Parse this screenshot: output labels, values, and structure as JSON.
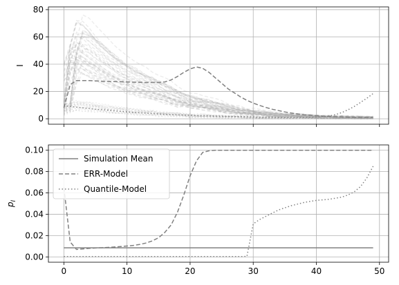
{
  "chart_data": [
    {
      "type": "line",
      "ylabel": "I",
      "xlim": [
        -2.45,
        51.45
      ],
      "ylim": [
        -4,
        82
      ],
      "xticks": [
        0,
        10,
        20,
        30,
        40,
        50
      ],
      "yticks": [
        0,
        20,
        40,
        60,
        80
      ],
      "xtick_labels_visible": false,
      "grid": true,
      "series": [
        {
          "style": "simulation-runs",
          "color": "#a9a9a9",
          "values_upper_band": [
            10,
            45,
            60,
            58,
            54,
            50,
            46,
            42,
            39,
            36,
            33,
            31,
            29,
            27,
            25,
            23,
            21,
            19,
            17,
            15,
            14,
            13,
            12,
            11,
            10,
            9,
            8,
            7,
            6,
            5.5,
            5,
            4.5,
            4,
            3.5,
            3,
            2.8,
            2.6,
            2.4,
            2.2,
            2,
            1.8,
            1.6,
            1.5,
            1.4,
            1.3,
            1.2,
            1.1,
            1,
            1,
            1
          ]
        },
        {
          "style": "dashed",
          "color": "#808080",
          "values": [
            8,
            25,
            28,
            28,
            28,
            27.7,
            27.5,
            27.3,
            27.2,
            27.1,
            27,
            26.8,
            26.7,
            26.6,
            26.6,
            26.6,
            27,
            28.5,
            31,
            34,
            36.5,
            38,
            37,
            34,
            30,
            26,
            22,
            19,
            16,
            13.5,
            11.5,
            9.8,
            8.3,
            7,
            6,
            5,
            4.2,
            3.6,
            3,
            2.6,
            2.2,
            1.9,
            1.7,
            1.5,
            1.3,
            1.2,
            1.1,
            1,
            1,
            1
          ]
        },
        {
          "style": "dotted",
          "color": "#808080",
          "values": [
            9.5,
            9,
            8.5,
            8,
            7.5,
            7,
            6.6,
            6.2,
            5.8,
            5.4,
            5,
            4.7,
            4.4,
            4.1,
            3.8,
            3.5,
            3.3,
            3.1,
            2.9,
            2.7,
            2.5,
            2.3,
            2.1,
            2,
            1.9,
            1.8,
            1.7,
            1.6,
            1.5,
            1.4,
            1.3,
            1.2,
            1.1,
            1.1,
            1,
            1,
            1,
            1,
            1,
            1,
            1.2,
            1.5,
            2,
            3,
            4.5,
            6.5,
            9,
            12,
            15,
            18.5
          ]
        }
      ]
    },
    {
      "type": "line",
      "ylabel": "p_I",
      "xlim": [
        -2.45,
        51.45
      ],
      "ylim": [
        -0.005,
        0.105
      ],
      "xticks": [
        0,
        10,
        20,
        30,
        40,
        50
      ],
      "yticks": [
        0.0,
        0.02,
        0.04,
        0.06,
        0.08,
        0.1
      ],
      "ytick_labels": [
        "0.00",
        "0.02",
        "0.04",
        "0.06",
        "0.08",
        "0.10"
      ],
      "xtick_labels": [
        "0",
        "10",
        "20",
        "30",
        "40",
        "50"
      ],
      "grid": true,
      "legend": "top-left",
      "series": [
        {
          "name": "Simulation Mean",
          "style": "solid",
          "color": "#808080",
          "values": [
            0.0085,
            0.0085,
            0.0085,
            0.0085,
            0.0085,
            0.0085,
            0.0085,
            0.0085,
            0.0085,
            0.0085,
            0.0085,
            0.0085,
            0.0085,
            0.0085,
            0.0085,
            0.0085,
            0.0085,
            0.0085,
            0.0085,
            0.0085,
            0.0085,
            0.0085,
            0.0085,
            0.0085,
            0.0085,
            0.0085,
            0.0085,
            0.0085,
            0.0085,
            0.0085,
            0.0085,
            0.0085,
            0.0085,
            0.0085,
            0.0085,
            0.0085,
            0.0085,
            0.0085,
            0.0085,
            0.0085,
            0.0085,
            0.0085,
            0.0085,
            0.0085,
            0.0085,
            0.0085,
            0.0085,
            0.0085,
            0.0085,
            0.0085
          ]
        },
        {
          "name": "ERR-Model",
          "style": "dashed",
          "color": "#808080",
          "values": [
            0.065,
            0.014,
            0.007,
            0.0075,
            0.008,
            0.0083,
            0.0086,
            0.0089,
            0.0093,
            0.0097,
            0.0102,
            0.0108,
            0.0116,
            0.013,
            0.015,
            0.018,
            0.023,
            0.03,
            0.042,
            0.058,
            0.076,
            0.09,
            0.098,
            0.0995,
            0.1,
            0.1,
            0.1,
            0.1,
            0.1,
            0.1,
            0.1,
            0.1,
            0.1,
            0.1,
            0.1,
            0.1,
            0.1,
            0.1,
            0.1,
            0.1,
            0.1,
            0.1,
            0.1,
            0.1,
            0.1,
            0.1,
            0.1,
            0.1,
            0.1,
            0.1
          ]
        },
        {
          "name": "Quantile-Model",
          "style": "dotted",
          "color": "#808080",
          "values": [
            0.0003,
            0.0003,
            0.0003,
            0.0003,
            0.0003,
            0.0003,
            0.0003,
            0.0003,
            0.0003,
            0.0003,
            0.0003,
            0.0003,
            0.0003,
            0.0003,
            0.0003,
            0.0003,
            0.0003,
            0.0003,
            0.0003,
            0.0003,
            0.0003,
            0.0003,
            0.0003,
            0.0003,
            0.0003,
            0.0003,
            0.0003,
            0.0003,
            0.0003,
            0.0005,
            0.031,
            0.035,
            0.038,
            0.041,
            0.044,
            0.046,
            0.048,
            0.0495,
            0.051,
            0.052,
            0.053,
            0.0535,
            0.054,
            0.055,
            0.056,
            0.058,
            0.061,
            0.066,
            0.074,
            0.085
          ]
        }
      ]
    }
  ]
}
